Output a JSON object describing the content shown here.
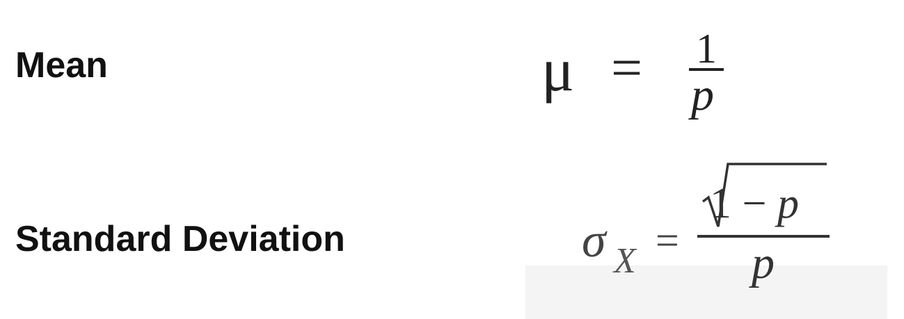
{
  "mean": {
    "label": "Mean",
    "symbol": "μ",
    "equals": "=",
    "numerator": "1",
    "denominator": "p"
  },
  "standard_deviation": {
    "label": "Standard Deviation",
    "symbol": "σ",
    "subscript": "X",
    "equals": "=",
    "numerator_one": "1",
    "numerator_minus": " − ",
    "numerator_var": "p",
    "denominator": "p"
  }
}
